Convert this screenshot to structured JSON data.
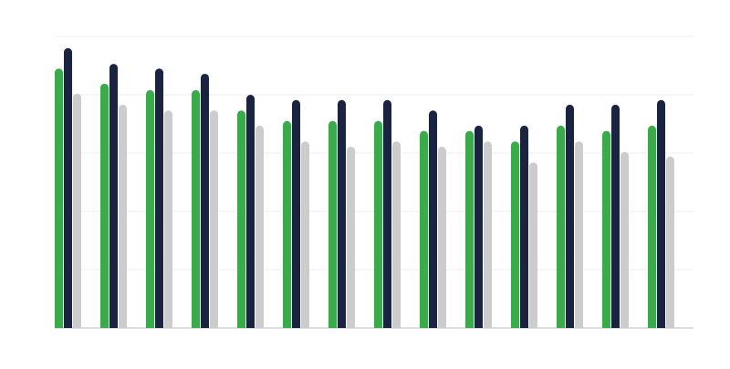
{
  "chart_data": {
    "type": "bar",
    "categories": [
      null,
      null,
      null,
      null,
      null,
      null,
      null,
      null,
      null,
      null,
      null,
      null,
      null,
      null
    ],
    "series": [
      {
        "color": "#3aaa4a",
        "values": [
          4.45,
          4.19,
          4.08,
          4.08,
          3.73,
          3.55,
          3.55,
          3.55,
          3.38,
          3.38,
          3.2,
          3.47,
          3.38,
          3.47
        ]
      },
      {
        "color": "#1a2440",
        "values": [
          4.8,
          4.53,
          4.45,
          4.36,
          4.0,
          3.91,
          3.91,
          3.91,
          3.73,
          3.47,
          3.47,
          3.83,
          3.83,
          3.91
        ]
      },
      {
        "color": "#cccccc",
        "values": [
          4.02,
          3.83,
          3.73,
          3.73,
          3.47,
          3.2,
          3.11,
          3.2,
          3.11,
          3.2,
          2.84,
          3.2,
          3.02,
          2.94
        ]
      }
    ],
    "ylim": [
      0,
      5
    ],
    "yticks": [
      0,
      1,
      2,
      3,
      4,
      5
    ],
    "grid": true,
    "tick_labels": false
  }
}
